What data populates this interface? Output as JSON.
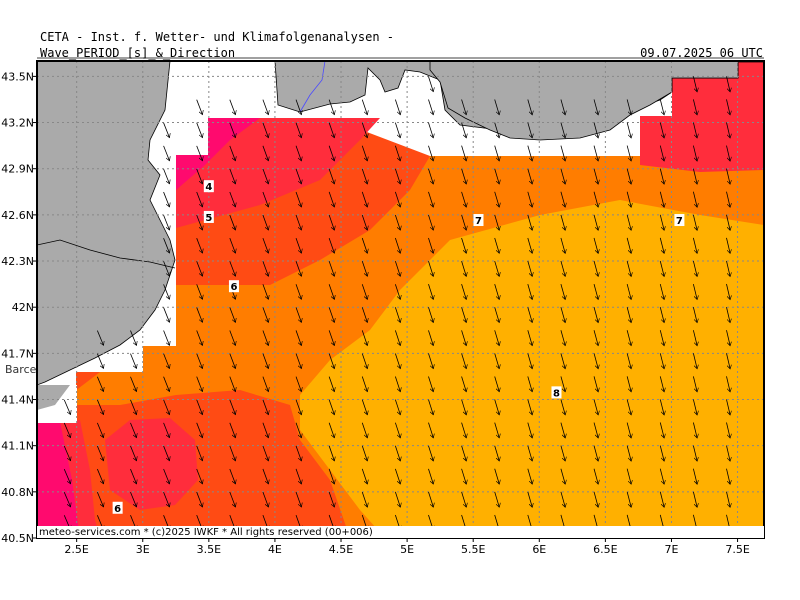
{
  "header": {
    "institute": "CETA - Inst. f. Wetter- und Klimafolgenanalysen -",
    "product": "Wave_PERIOD_[s]_&_Direction",
    "valid_time": "09.07.2025 06 UTC"
  },
  "footer": {
    "credit": "meteo-services.com * (c)2025 IWKF * All rights reserved (00+006)"
  },
  "place_labels": [
    {
      "name": "Barce"
    }
  ],
  "axes": {
    "lon_ticks": [
      "2.5E",
      "3E",
      "3.5E",
      "4E",
      "4.5E",
      "5E",
      "5.5E",
      "6E",
      "6.5E",
      "7E",
      "7.5E"
    ],
    "lat_ticks": [
      "43.5N",
      "43.2N",
      "42.9N",
      "42.6N",
      "42.3N",
      "42N",
      "41.7N",
      "41.4N",
      "41.1N",
      "40.8N",
      "40.5N"
    ],
    "lon_range": [
      2.2,
      7.7
    ],
    "lat_range": [
      40.5,
      43.6
    ]
  },
  "legend_colors": {
    "land": "#aaaaaa",
    "p4": "#ff0a6e",
    "p5": "#ff2d3c",
    "p6": "#ff4b14",
    "p7": "#ff7d00",
    "p8": "#ffb000"
  },
  "contour_labels": [
    {
      "text": "4",
      "lon": 3.5,
      "lat": 42.78
    },
    {
      "text": "5",
      "lon": 3.5,
      "lat": 42.58
    },
    {
      "text": "6",
      "lon": 3.69,
      "lat": 42.13
    },
    {
      "text": "7",
      "lon": 5.54,
      "lat": 42.56
    },
    {
      "text": "7",
      "lon": 7.06,
      "lat": 42.56
    },
    {
      "text": "8",
      "lon": 6.13,
      "lat": 41.44
    },
    {
      "text": "6",
      "lon": 2.81,
      "lat": 40.69
    }
  ],
  "wave_direction": "from north-northwest (arrows pointing south-southeast)"
}
